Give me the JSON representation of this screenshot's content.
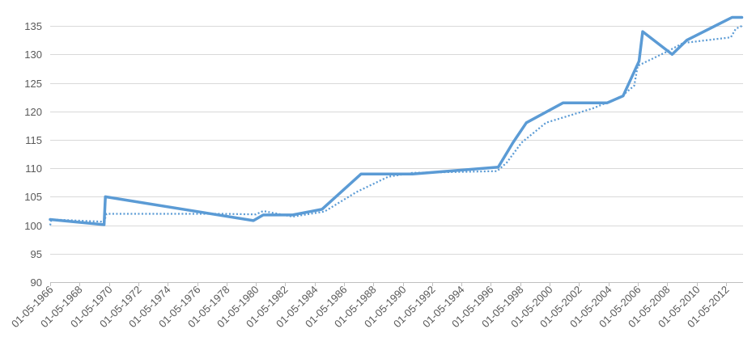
{
  "chart_data": {
    "type": "line",
    "title": "",
    "xlabel": "",
    "ylabel": "",
    "ylim": [
      90,
      137
    ],
    "yticks": [
      90,
      95,
      100,
      105,
      110,
      115,
      120,
      125,
      130,
      135
    ],
    "xlim": [
      "1966-05-01",
      "2013-07-01"
    ],
    "xtick_labels": [
      "01-05-1966",
      "01-05-1968",
      "01-05-1970",
      "01-05-1972",
      "01-05-1974",
      "01-05-1976",
      "01-05-1978",
      "01-05-1980",
      "01-05-1982",
      "01-05-1984",
      "01-05-1986",
      "01-05-1988",
      "01-05-1990",
      "01-05-1992",
      "01-05-1994",
      "01-05-1996",
      "01-05-1998",
      "01-05-2000",
      "01-05-2002",
      "01-05-2004",
      "01-05-2006",
      "01-05-2008",
      "01-05-2010",
      "01-05-2012"
    ],
    "grid": true,
    "legend": "none",
    "series": [
      {
        "style": "solid",
        "color": "#5B9BD5",
        "points": [
          [
            "1966-05-01",
            101.0
          ],
          [
            "1970-01-01",
            100.1
          ],
          [
            "1970-02-01",
            105.0
          ],
          [
            "1980-03-01",
            100.8
          ],
          [
            "1980-11-01",
            101.8
          ],
          [
            "1982-11-01",
            101.8
          ],
          [
            "1984-11-01",
            102.8
          ],
          [
            "1987-07-01",
            109.0
          ],
          [
            "1991-01-01",
            109.0
          ],
          [
            "1996-11-01",
            110.2
          ],
          [
            "1997-11-01",
            114.5
          ],
          [
            "1998-10-01",
            118.0
          ],
          [
            "2001-04-01",
            121.5
          ],
          [
            "2004-04-01",
            121.5
          ],
          [
            "2005-05-01",
            122.7
          ],
          [
            "2006-06-01",
            128.8
          ],
          [
            "2006-09-01",
            134.0
          ],
          [
            "2008-09-01",
            130.0
          ],
          [
            "2009-09-01",
            132.5
          ],
          [
            "2012-10-01",
            136.5
          ],
          [
            "2013-06-01",
            136.5
          ]
        ]
      },
      {
        "style": "dotted",
        "color": "#5B9BD5",
        "points": [
          [
            "1966-05-01",
            100.0
          ],
          [
            "1966-06-01",
            101.0
          ],
          [
            "1970-01-01",
            100.6
          ],
          [
            "1970-03-01",
            102.0
          ],
          [
            "1978-01-01",
            102.0
          ],
          [
            "1980-05-01",
            101.9
          ],
          [
            "1980-11-01",
            102.5
          ],
          [
            "1982-11-01",
            101.5
          ],
          [
            "1985-01-01",
            102.4
          ],
          [
            "1987-03-01",
            105.8
          ],
          [
            "1989-05-01",
            108.5
          ],
          [
            "1991-01-01",
            109.2
          ],
          [
            "1996-10-01",
            109.5
          ],
          [
            "1997-06-01",
            111.0
          ],
          [
            "1998-06-01",
            114.5
          ],
          [
            "2000-02-01",
            118.0
          ],
          [
            "2003-04-01",
            120.5
          ],
          [
            "2005-03-01",
            122.5
          ],
          [
            "2006-02-01",
            124.5
          ],
          [
            "2006-05-01",
            128.0
          ],
          [
            "2008-05-01",
            130.5
          ],
          [
            "2009-06-01",
            132.0
          ],
          [
            "2012-09-01",
            133.0
          ],
          [
            "2013-01-01",
            134.5
          ],
          [
            "2013-06-01",
            135.0
          ]
        ]
      }
    ]
  }
}
